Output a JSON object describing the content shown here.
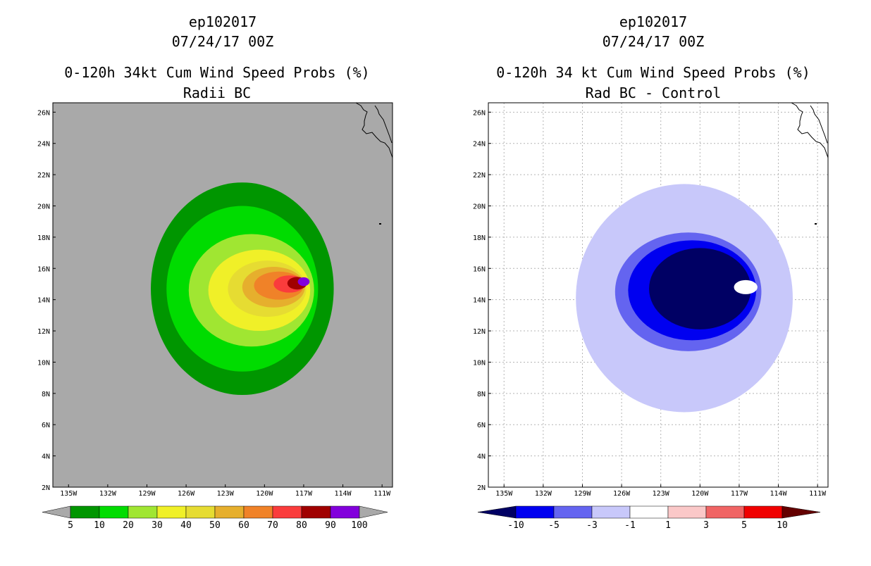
{
  "chart_data": [
    {
      "type": "filled-contour-map",
      "storm_id": "ep102017",
      "datetime": "07/24/17 00Z",
      "title": "0-120h 34kt Cum Wind Speed Probs (%)",
      "subtitle": "Radii BC",
      "x_axis": {
        "ticks": [
          "135W",
          "132W",
          "129W",
          "126W",
          "123W",
          "120W",
          "117W",
          "114W",
          "111W"
        ],
        "values": [
          -135,
          -132,
          -129,
          -126,
          -123,
          -120,
          -117,
          -114,
          -111
        ],
        "range": [
          -136.2,
          -110.2
        ]
      },
      "y_axis": {
        "ticks": [
          "2N",
          "4N",
          "6N",
          "8N",
          "10N",
          "12N",
          "14N",
          "16N",
          "18N",
          "20N",
          "22N",
          "24N",
          "26N"
        ],
        "values": [
          2,
          4,
          6,
          8,
          10,
          12,
          14,
          16,
          18,
          20,
          22,
          24,
          26
        ],
        "range": [
          2,
          26.6
        ]
      },
      "background_color": "#a9a9a9",
      "grid": false,
      "colorbar": {
        "labels": [
          "5",
          "10",
          "20",
          "30",
          "40",
          "50",
          "60",
          "70",
          "80",
          "90",
          "100"
        ],
        "colors": [
          "#009600",
          "#00dc00",
          "#a0e632",
          "#f0f028",
          "#e6dc32",
          "#e6af2d",
          "#f08228",
          "#fa3c3c",
          "#a00000",
          "#8200dc"
        ],
        "end_color": "#a9a9a9"
      },
      "contours": [
        {
          "level": "5-10",
          "color": "#009600",
          "center": [
            -121.7,
            14.7
          ],
          "rx": 7.0,
          "ry": 6.8
        },
        {
          "level": "10-20",
          "color": "#00dc00",
          "center": [
            -121.7,
            14.7
          ],
          "rx": 5.8,
          "ry": 5.3
        },
        {
          "level": "20-30",
          "color": "#a0e632",
          "center": [
            -121.0,
            14.6
          ],
          "rx": 4.8,
          "ry": 3.6
        },
        {
          "level": "30-40",
          "color": "#f0f028",
          "center": [
            -120.4,
            14.6
          ],
          "rx": 3.9,
          "ry": 2.6
        },
        {
          "level": "40-50",
          "color": "#e6dc32",
          "center": [
            -119.8,
            14.7
          ],
          "rx": 3.0,
          "ry": 1.8
        },
        {
          "level": "50-60",
          "color": "#e6af2d",
          "center": [
            -119.3,
            14.8
          ],
          "rx": 2.4,
          "ry": 1.3
        },
        {
          "level": "60-70",
          "color": "#f08228",
          "center": [
            -118.9,
            14.9
          ],
          "rx": 1.9,
          "ry": 0.9
        },
        {
          "level": "70-80",
          "color": "#fa3c3c",
          "center": [
            -118.1,
            15.0
          ],
          "rx": 1.2,
          "ry": 0.55
        },
        {
          "level": "80-90",
          "color": "#a00000",
          "center": [
            -117.5,
            15.05
          ],
          "rx": 0.75,
          "ry": 0.4
        },
        {
          "level": "90-100",
          "color": "#8200dc",
          "center": [
            -117.0,
            15.15
          ],
          "rx": 0.45,
          "ry": 0.28
        }
      ]
    },
    {
      "type": "filled-contour-map",
      "storm_id": "ep102017",
      "datetime": "07/24/17 00Z",
      "title": "0-120h 34 kt Cum Wind Speed Probs (%)",
      "subtitle": "Rad BC - Control",
      "x_axis": {
        "ticks": [
          "135W",
          "132W",
          "129W",
          "126W",
          "123W",
          "120W",
          "117W",
          "114W",
          "111W"
        ],
        "values": [
          -135,
          -132,
          -129,
          -126,
          -123,
          -120,
          -117,
          -114,
          -111
        ],
        "range": [
          -136.2,
          -110.2
        ]
      },
      "y_axis": {
        "ticks": [
          "2N",
          "4N",
          "6N",
          "8N",
          "10N",
          "12N",
          "14N",
          "16N",
          "18N",
          "20N",
          "22N",
          "24N",
          "26N"
        ],
        "values": [
          2,
          4,
          6,
          8,
          10,
          12,
          14,
          16,
          18,
          20,
          22,
          24,
          26
        ],
        "range": [
          2,
          26.6
        ]
      },
      "background_color": "#ffffff",
      "grid": true,
      "colorbar": {
        "labels": [
          "-10",
          "-5",
          "-3",
          "-1",
          "1",
          "3",
          "5",
          "10"
        ],
        "colors": [
          "#000064",
          "#0000f0",
          "#6464f0",
          "#c8c8fa",
          "#ffffff",
          "#fac8c8",
          "#f06464",
          "#f00000",
          "#640000"
        ]
      },
      "contours": [
        {
          "level": "-3 to -1",
          "color": "#c8c8fa",
          "center": [
            -121.2,
            14.1
          ],
          "rx": 8.3,
          "ry": 7.3
        },
        {
          "level": "-5 to -3",
          "color": "#6464f0",
          "center": [
            -120.9,
            14.5
          ],
          "rx": 5.6,
          "ry": 3.8
        },
        {
          "level": "-10 to -5",
          "color": "#0000f0",
          "center": [
            -120.6,
            14.6
          ],
          "rx": 4.9,
          "ry": 3.2
        },
        {
          "level": "< -10",
          "color": "#000064",
          "center": [
            -120.0,
            14.7
          ],
          "rx": 3.9,
          "ry": 2.6
        },
        {
          "level": "-1 to 1",
          "color": "#ffffff",
          "center": [
            -116.5,
            14.8
          ],
          "rx": 0.9,
          "ry": 0.45
        }
      ]
    }
  ]
}
